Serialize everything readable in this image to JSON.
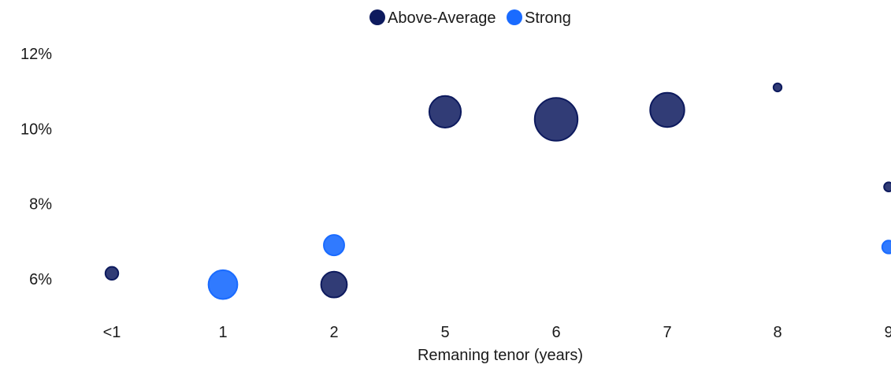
{
  "chart_data": {
    "type": "scatter",
    "bubble": true,
    "title": "",
    "xlabel": "Remaning tenor (years)",
    "ylabel": "",
    "categories": [
      "<1",
      "1",
      "2",
      "5",
      "6",
      "7",
      "8",
      "9"
    ],
    "y_ticks": [
      "12%",
      "10%",
      "8%",
      "6%"
    ],
    "y_tick_values": [
      12,
      10,
      8,
      6
    ],
    "ylim": [
      5,
      12.5
    ],
    "grid": false,
    "legend_position": "top-center",
    "series": [
      {
        "name": "Above-Average",
        "color": "#0d1a5e",
        "fill_opacity": 0.85,
        "points": [
          {
            "x": "<1",
            "y": 6.15,
            "size": 1
          },
          {
            "x": "2",
            "y": 5.85,
            "size": 4
          },
          {
            "x": "5",
            "y": 10.45,
            "size": 6
          },
          {
            "x": "6",
            "y": 10.25,
            "size": 11
          },
          {
            "x": "7",
            "y": 10.5,
            "size": 7
          },
          {
            "x": "8",
            "y": 11.1,
            "size": 0.4
          },
          {
            "x": "9",
            "y": 8.45,
            "size": 0.5
          }
        ]
      },
      {
        "name": "Strong",
        "color": "#1a6bff",
        "fill_opacity": 0.9,
        "points": [
          {
            "x": "1",
            "y": 5.85,
            "size": 5
          },
          {
            "x": "2",
            "y": 6.9,
            "size": 2.5
          },
          {
            "x": "9",
            "y": 6.85,
            "size": 1
          }
        ]
      }
    ]
  }
}
